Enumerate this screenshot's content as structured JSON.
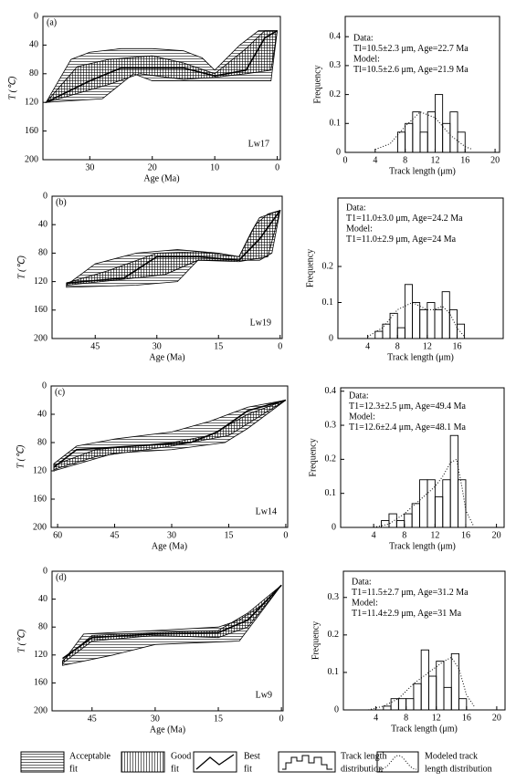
{
  "chart_data": [
    {
      "type": "thermal-history",
      "panel": "(a)",
      "sample": "Lw17",
      "xlabel": "Age (Ma)",
      "ylabel": "T (℃)",
      "yinvert": true,
      "xlim": [
        37.5,
        -0.5
      ],
      "ylim": [
        0,
        200
      ],
      "xticks": [
        30,
        20,
        10,
        0
      ],
      "yticks": [
        0,
        40,
        80,
        120,
        160,
        200
      ],
      "series": [
        {
          "hatch": "horizontal",
          "x": [
            37,
            33,
            30,
            25,
            20,
            15,
            12,
            10,
            6,
            3,
            0,
            1,
            5,
            10,
            15,
            20,
            23,
            28,
            37
          ],
          "values": [
            120,
            60,
            50,
            45,
            45,
            48,
            58,
            75,
            40,
            20,
            20,
            90,
            90,
            90,
            90,
            90,
            80,
            115,
            120
          ]
        },
        {
          "hatch": "vertical",
          "x": [
            37,
            32,
            27,
            20,
            15,
            10,
            5,
            2,
            0,
            1,
            5,
            10,
            15,
            22,
            27,
            37
          ],
          "values": [
            120,
            70,
            60,
            55,
            65,
            80,
            45,
            20,
            20,
            75,
            80,
            85,
            88,
            80,
            95,
            120
          ]
        },
        {
          "x": [
            37,
            30,
            25,
            15,
            10,
            5,
            2,
            0
          ],
          "values": [
            120,
            90,
            72,
            72,
            83,
            75,
            30,
            20
          ]
        }
      ]
    },
    {
      "type": "histogram",
      "annotations": [
        "Data:",
        "Tl=10.5±2.3 μm, Age=22.7 Ma",
        "Model:",
        "Tl=10.5±2.6 μm, Age=21.9 Ma"
      ],
      "xlabel": "Track length (μm)",
      "ylabel": "Frequency",
      "xlim": [
        0,
        20.6
      ],
      "ylim": [
        0,
        0.47
      ],
      "xticks": [
        0,
        4,
        8,
        12,
        16,
        20
      ],
      "yticks": [
        0,
        0.1,
        0.2,
        0.3,
        0.4
      ],
      "bins": [
        7,
        8,
        9,
        10,
        11,
        12,
        13,
        14,
        15,
        16
      ],
      "values": [
        0.07,
        0.1,
        0.14,
        0.07,
        0.14,
        0.2,
        0.1,
        0.14,
        0.07
      ],
      "curve": {
        "x": [
          4,
          6,
          8,
          10,
          12,
          14,
          16,
          17
        ],
        "values": [
          0.01,
          0.03,
          0.09,
          0.14,
          0.12,
          0.06,
          0.02,
          0.01
        ]
      }
    },
    {
      "type": "thermal-history",
      "panel": "(b)",
      "sample": "Lw19",
      "xlabel": "Age (Ma)",
      "ylabel": "T (℃)",
      "yinvert": true,
      "xlim": [
        55.5,
        -0.5
      ],
      "ylim": [
        0,
        200
      ],
      "xticks": [
        45,
        30,
        15,
        0
      ],
      "yticks": [
        0,
        40,
        80,
        120,
        160,
        200
      ],
      "series": [
        {
          "hatch": "horizontal",
          "x": [
            52,
            45,
            35,
            25,
            15,
            10,
            7,
            5,
            0,
            2,
            5,
            10,
            20,
            25,
            35,
            52
          ],
          "values": [
            125,
            95,
            80,
            75,
            80,
            85,
            50,
            30,
            20,
            80,
            90,
            90,
            90,
            120,
            125,
            128
          ]
        },
        {
          "hatch": "vertical",
          "x": [
            52,
            42,
            30,
            20,
            10,
            6,
            3,
            0,
            3,
            10,
            20,
            28,
            40,
            52
          ],
          "values": [
            122,
            105,
            80,
            78,
            85,
            40,
            25,
            20,
            85,
            92,
            90,
            110,
            118,
            125
          ]
        },
        {
          "x": [
            52,
            38,
            30,
            20,
            10,
            5,
            0
          ],
          "values": [
            122,
            115,
            85,
            85,
            90,
            60,
            20
          ]
        }
      ]
    },
    {
      "type": "histogram",
      "annotations": [
        "Data:",
        "T1=11.0±3.0 μm, Age=24.2 Ma",
        "Model:",
        "T1=11.0±2.9 μm, Age=24 Ma"
      ],
      "xlabel": "Track length (μm)",
      "ylabel": "Frequency",
      "xlim": [
        0,
        22.2
      ],
      "ylim": [
        0,
        0.39
      ],
      "xticks": [
        4,
        8,
        12,
        16
      ],
      "yticks": [
        0,
        0.1,
        0.2
      ],
      "bins": [
        5,
        6,
        7,
        8,
        9,
        10,
        11,
        12,
        13,
        14,
        15,
        16,
        17
      ],
      "values": [
        0.02,
        0.04,
        0.07,
        0.03,
        0.15,
        0.1,
        0.08,
        0.1,
        0.08,
        0.13,
        0.08,
        0.04
      ],
      "curve": {
        "x": [
          4,
          6,
          8,
          10,
          12,
          13,
          14,
          15,
          16,
          17
        ],
        "values": [
          0.005,
          0.03,
          0.08,
          0.1,
          0.08,
          0.08,
          0.09,
          0.07,
          0.03,
          0.005
        ]
      }
    },
    {
      "type": "thermal-history",
      "panel": "(c)",
      "sample": "Lw14",
      "xlabel": "Age (Ma)",
      "ylabel": "T (℃)",
      "yinvert": true,
      "xlim": [
        61.7,
        -0.5
      ],
      "ylim": [
        0,
        200
      ],
      "xticks": [
        60,
        45,
        30,
        15,
        0
      ],
      "yticks": [
        0,
        40,
        80,
        120,
        160,
        200
      ],
      "series": [
        {
          "hatch": "horizontal",
          "x": [
            61,
            55,
            45,
            30,
            20,
            10,
            0,
            10,
            16,
            30,
            45,
            61
          ],
          "values": [
            110,
            85,
            75,
            65,
            50,
            30,
            20,
            60,
            80,
            90,
            95,
            120
          ]
        },
        {
          "hatch": "vertical",
          "x": [
            61,
            50,
            30,
            20,
            10,
            0,
            15,
            30,
            50,
            61
          ],
          "values": [
            112,
            90,
            80,
            70,
            40,
            20,
            70,
            85,
            100,
            118
          ]
        },
        {
          "x": [
            61,
            55,
            40,
            25,
            18,
            10,
            0
          ],
          "values": [
            115,
            90,
            85,
            80,
            65,
            35,
            20
          ]
        }
      ]
    },
    {
      "type": "histogram",
      "annotations": [
        "Data:",
        "T1=12.3±2.5 μm, Age=49.4 Ma",
        "Model:",
        "T1=12.6±2.4 μm, Age=48.1 Ma"
      ],
      "xlabel": "Track length (μm)",
      "ylabel": "Frequency",
      "xlim": [
        -0.3,
        21
      ],
      "ylim": [
        0,
        0.41
      ],
      "xticks": [
        4,
        8,
        12,
        16,
        20
      ],
      "yticks": [
        0,
        0.1,
        0.2,
        0.3,
        0.4
      ],
      "bins": [
        5,
        6,
        7,
        8,
        9,
        10,
        11,
        12,
        13,
        14,
        15,
        16
      ],
      "values": [
        0.02,
        0.04,
        0.02,
        0.04,
        0.07,
        0.14,
        0.14,
        0.09,
        0.14,
        0.27,
        0.14
      ],
      "curve": {
        "x": [
          4,
          6,
          8,
          10,
          12,
          13,
          14,
          14.8,
          15.5,
          16,
          17
        ],
        "values": [
          0,
          0.01,
          0.04,
          0.08,
          0.12,
          0.15,
          0.19,
          0.2,
          0.12,
          0.05,
          0.005
        ]
      }
    },
    {
      "type": "thermal-history",
      "panel": "(d)",
      "sample": "Lw9",
      "xlabel": "Age (Ma)",
      "ylabel": "T (℃)",
      "yinvert": true,
      "xlim": [
        54.5,
        -0.4
      ],
      "ylim": [
        0,
        200
      ],
      "xticks": [
        45,
        30,
        15,
        0
      ],
      "yticks": [
        0,
        40,
        80,
        120,
        160,
        200
      ],
      "series": [
        {
          "hatch": "horizontal",
          "x": [
            52,
            47,
            30,
            15,
            10,
            5,
            0,
            5,
            10,
            30,
            40,
            52
          ],
          "values": [
            130,
            90,
            85,
            80,
            70,
            50,
            20,
            60,
            100,
            105,
            120,
            135
          ]
        },
        {
          "hatch": "vertical",
          "x": [
            52,
            45,
            30,
            15,
            8,
            0,
            8,
            15,
            30,
            45,
            52
          ],
          "values": [
            128,
            92,
            88,
            85,
            60,
            20,
            80,
            95,
            92,
            100,
            132
          ]
        },
        {
          "x": [
            52,
            45,
            30,
            15,
            8,
            0
          ],
          "values": [
            125,
            95,
            90,
            88,
            70,
            20
          ]
        }
      ]
    },
    {
      "type": "histogram",
      "annotations": [
        "Data:",
        "T1=11.5±2.7 μm, Age=31.2 Ma",
        "Model:",
        "T1=11.4±2.9 μm, Age=31 Ma"
      ],
      "xlabel": "Track length (μm)",
      "ylabel": "Frequency",
      "xlim": [
        -0.3,
        21.1
      ],
      "ylim": [
        0,
        0.37
      ],
      "xticks": [
        4,
        8,
        12,
        16,
        20
      ],
      "yticks": [
        0,
        0.1,
        0.2,
        0.3
      ],
      "bins": [
        5,
        6,
        7,
        8,
        9,
        10,
        11,
        12,
        13,
        14,
        15,
        16
      ],
      "values": [
        0.01,
        0.03,
        0.03,
        0.03,
        0.07,
        0.16,
        0.09,
        0.13,
        0.06,
        0.15,
        0.03
      ],
      "curve": {
        "x": [
          3,
          5,
          7,
          9,
          11,
          13,
          14,
          15,
          16,
          17
        ],
        "values": [
          0,
          0.01,
          0.03,
          0.07,
          0.1,
          0.13,
          0.14,
          0.11,
          0.04,
          0.01
        ]
      }
    }
  ],
  "legend": [
    [
      "Acceptable",
      "fit"
    ],
    [
      "Good",
      "fit"
    ],
    [
      "Best",
      "fit"
    ],
    [
      "Track length",
      "distribution"
    ],
    [
      "Modeled track",
      "length distribution"
    ]
  ]
}
